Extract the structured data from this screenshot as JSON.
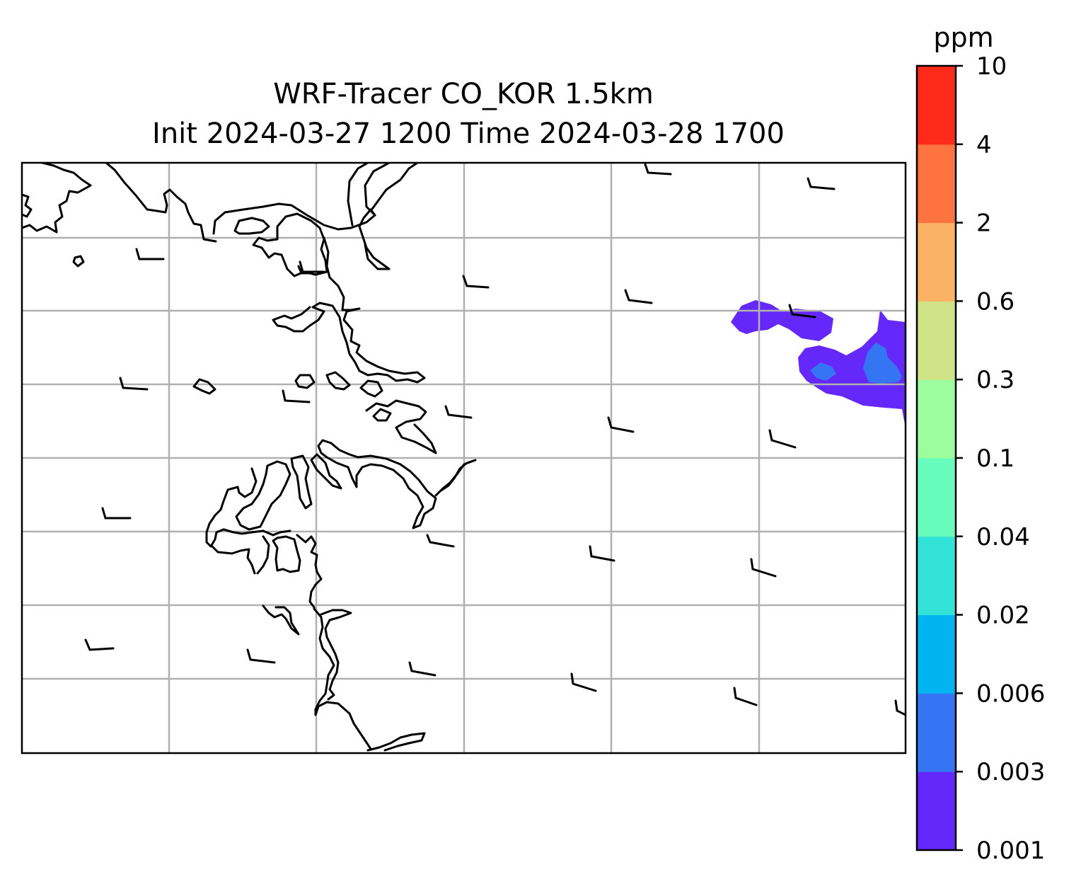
{
  "title": {
    "line1": "WRF-Tracer CO_KOR 1.5km",
    "line2": "Init 2024-03-27 1200 Time 2024-03-28 1700"
  },
  "colorbar": {
    "unit": "ppm",
    "levels": [
      "0.001",
      "0.003",
      "0.006",
      "0.02",
      "0.04",
      "0.1",
      "0.3",
      "0.6",
      "2",
      "4",
      "10"
    ],
    "colors": [
      "#6428fa",
      "#3575f3",
      "#00b4ef",
      "#33e3d7",
      "#66fdbc",
      "#9cfd9f",
      "#d1e286",
      "#fbb264",
      "#ff7340",
      "#ff2a1a"
    ]
  },
  "map": {
    "gridlines": true,
    "grid_color": "#b0b0b0",
    "coastline_color": "#000000",
    "plume_colors": [
      "#6428fa",
      "#3575f3"
    ]
  },
  "chart_data": {
    "type": "heatmap",
    "title": "WRF-Tracer CO_KOR 1.5km\nInit 2024-03-27 1200 Time 2024-03-28 1700",
    "colorbar_label": "ppm",
    "colorbar_levels": [
      0.001,
      0.003,
      0.006,
      0.02,
      0.04,
      0.1,
      0.3,
      0.6,
      2,
      4,
      10
    ],
    "overlays": [
      "coastlines",
      "gridlines",
      "wind barbs"
    ],
    "plume": "CO tracer between 0.001 and 0.006 ppm along the east (right) edge of the domain"
  }
}
